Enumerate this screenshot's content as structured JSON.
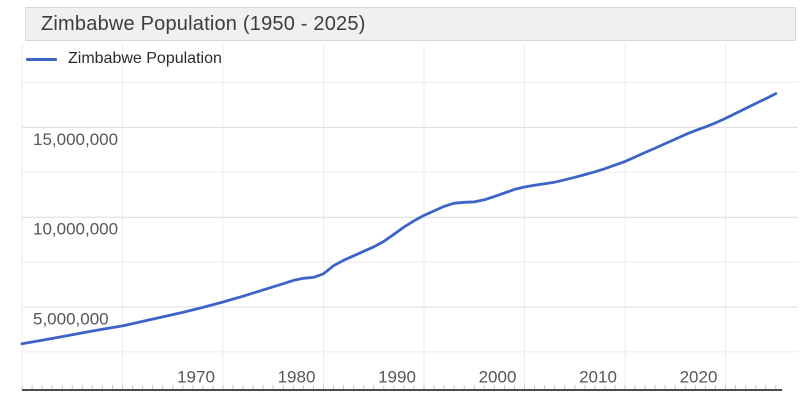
{
  "title": "Zimbabwe Population (1950 - 2025)",
  "legend": {
    "label": "Zimbabwe Population"
  },
  "colors": {
    "line": "#3c64c8",
    "grid_major": "#dcdcdc",
    "grid_minor": "#ececec",
    "axis_line": "#4c4c4c",
    "minor_tick": "#c9c9c9",
    "axis_text": "#565656",
    "title_text": "#3d3d3d",
    "title_bg": "#f0f0f0",
    "title_border": "#d9d9d9"
  },
  "chart_data": {
    "type": "line",
    "title": "Zimbabwe Population (1950 - 2025)",
    "xlabel": "",
    "ylabel": "",
    "grid": true,
    "legend_position": "top-left",
    "x_axis": {
      "min": 1950,
      "max": 2025,
      "gridline_step": 10,
      "minor_tick_step": 1,
      "ticks": [
        {
          "year": 1970,
          "label": "1970"
        },
        {
          "year": 1980,
          "label": "1980"
        },
        {
          "year": 1990,
          "label": "1990"
        },
        {
          "year": 2000,
          "label": "2000"
        },
        {
          "year": 2010,
          "label": "2010"
        },
        {
          "year": 2020,
          "label": "2020"
        }
      ]
    },
    "y_axis": {
      "min": 0,
      "max": 20000000,
      "gridline_step": 2500000,
      "ticks": [
        {
          "value": 5000000,
          "label": "5,000,000"
        },
        {
          "value": 10000000,
          "label": "10,000,000"
        },
        {
          "value": 15000000,
          "label": "15,000,000"
        }
      ]
    },
    "series": [
      {
        "name": "Zimbabwe Population",
        "points": [
          [
            1950,
            2950000
          ],
          [
            1952,
            3150000
          ],
          [
            1954,
            3350000
          ],
          [
            1956,
            3560000
          ],
          [
            1958,
            3760000
          ],
          [
            1960,
            3950000
          ],
          [
            1962,
            4200000
          ],
          [
            1964,
            4450000
          ],
          [
            1966,
            4700000
          ],
          [
            1968,
            4980000
          ],
          [
            1970,
            5280000
          ],
          [
            1972,
            5600000
          ],
          [
            1974,
            5950000
          ],
          [
            1976,
            6300000
          ],
          [
            1977,
            6480000
          ],
          [
            1978,
            6600000
          ],
          [
            1979,
            6650000
          ],
          [
            1980,
            6850000
          ],
          [
            1981,
            7300000
          ],
          [
            1982,
            7600000
          ],
          [
            1983,
            7850000
          ],
          [
            1984,
            8100000
          ],
          [
            1985,
            8350000
          ],
          [
            1986,
            8650000
          ],
          [
            1987,
            9050000
          ],
          [
            1988,
            9450000
          ],
          [
            1989,
            9800000
          ],
          [
            1990,
            10100000
          ],
          [
            1991,
            10350000
          ],
          [
            1992,
            10600000
          ],
          [
            1993,
            10780000
          ],
          [
            1994,
            10830000
          ],
          [
            1995,
            10850000
          ],
          [
            1996,
            10970000
          ],
          [
            1997,
            11150000
          ],
          [
            1998,
            11350000
          ],
          [
            1999,
            11550000
          ],
          [
            2000,
            11680000
          ],
          [
            2001,
            11780000
          ],
          [
            2002,
            11860000
          ],
          [
            2003,
            11950000
          ],
          [
            2004,
            12080000
          ],
          [
            2005,
            12220000
          ],
          [
            2006,
            12370000
          ],
          [
            2007,
            12530000
          ],
          [
            2008,
            12700000
          ],
          [
            2009,
            12900000
          ],
          [
            2010,
            13100000
          ],
          [
            2011,
            13350000
          ],
          [
            2012,
            13600000
          ],
          [
            2013,
            13850000
          ],
          [
            2014,
            14100000
          ],
          [
            2015,
            14350000
          ],
          [
            2016,
            14600000
          ],
          [
            2017,
            14820000
          ],
          [
            2018,
            15030000
          ],
          [
            2019,
            15250000
          ],
          [
            2020,
            15500000
          ],
          [
            2021,
            15780000
          ],
          [
            2022,
            16050000
          ],
          [
            2023,
            16330000
          ],
          [
            2024,
            16600000
          ],
          [
            2025,
            16880000
          ]
        ]
      }
    ]
  }
}
